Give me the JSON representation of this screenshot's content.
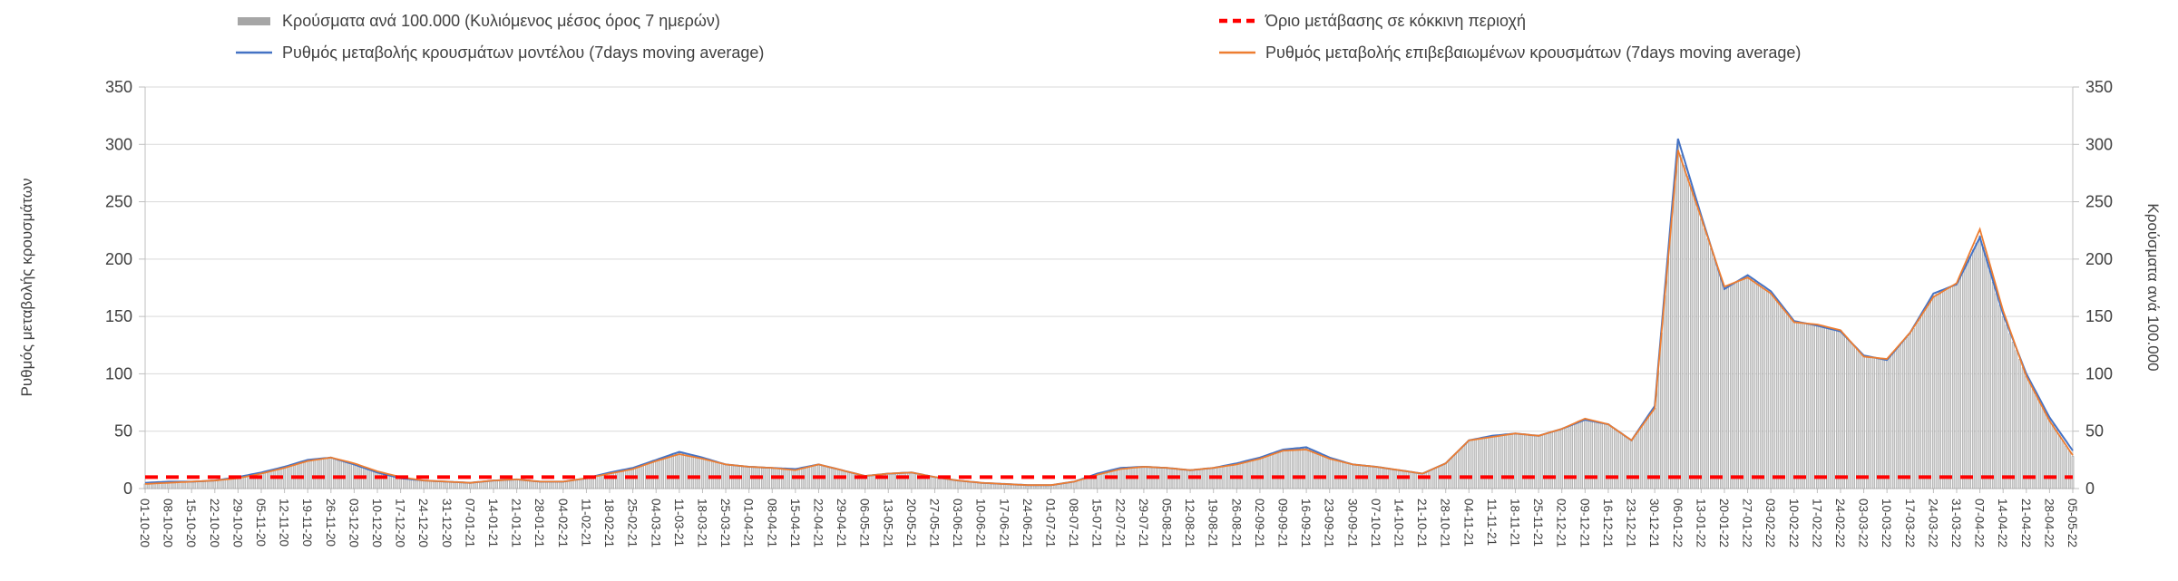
{
  "colors": {
    "bar_fill": "#dcdcdc",
    "bar_stroke": "#8f8f8f",
    "bar_legend": "#a6a6a6",
    "model_line": "#4472c4",
    "confirmed_line": "#ed7d31",
    "threshold_line": "#ff0000",
    "grid": "#d9d9d9",
    "axis": "#bfbfbf",
    "text": "#404040"
  },
  "legend": {
    "bars": "Κρούσματα ανά 100.000 (Κυλιόμενος μέσος όρος 7 ημερών)",
    "threshold": "Όριο μετάβασης σε κόκκινη περιοχή",
    "model": "Ρυθμός μεταβολής κρουσμάτων μοντέλου (7days moving average)",
    "confirmed": "Ρυθμός μεταβολής επιβεβαιωμένων κρουσμάτων (7days moving average)"
  },
  "axes": {
    "left_label": "Ρυθμός μεταβολής κρουσμάτων",
    "right_label": "Κρούσματα ανά 100.000"
  },
  "chart_data": {
    "type": "bar",
    "title": "",
    "xlabel": "",
    "ylabel_left": "Ρυθμός μεταβολής κρουσμάτων",
    "ylabel_right": "Κρούσματα ανά 100.000",
    "ylim": [
      0,
      350
    ],
    "y_ticks": [
      0,
      50,
      100,
      150,
      200,
      250,
      300,
      350
    ],
    "grid": "horizontal",
    "legend_position": "top",
    "categories": [
      "01-10-20",
      "08-10-20",
      "15-10-20",
      "22-10-20",
      "29-10-20",
      "05-11-20",
      "12-11-20",
      "19-11-20",
      "26-11-20",
      "03-12-20",
      "10-12-20",
      "17-12-20",
      "24-12-20",
      "31-12-20",
      "07-01-21",
      "14-01-21",
      "21-01-21",
      "28-01-21",
      "04-02-21",
      "11-02-21",
      "18-02-21",
      "25-02-21",
      "04-03-21",
      "11-03-21",
      "18-03-21",
      "25-03-21",
      "01-04-21",
      "08-04-21",
      "15-04-21",
      "22-04-21",
      "29-04-21",
      "06-05-21",
      "13-05-21",
      "20-05-21",
      "27-05-21",
      "03-06-21",
      "10-06-21",
      "17-06-21",
      "24-06-21",
      "01-07-21",
      "08-07-21",
      "15-07-21",
      "22-07-21",
      "29-07-21",
      "05-08-21",
      "12-08-21",
      "19-08-21",
      "26-08-21",
      "02-09-21",
      "09-09-21",
      "16-09-21",
      "23-09-21",
      "30-09-21",
      "07-10-21",
      "14-10-21",
      "21-10-21",
      "28-10-21",
      "04-11-21",
      "11-11-21",
      "18-11-21",
      "25-11-21",
      "02-12-21",
      "09-12-21",
      "16-12-21",
      "23-12-21",
      "30-12-21",
      "06-01-22",
      "13-01-22",
      "20-01-22",
      "27-01-22",
      "03-02-22",
      "10-02-22",
      "17-02-22",
      "24-02-22",
      "03-03-22",
      "10-03-22",
      "17-03-22",
      "24-03-22",
      "31-03-22",
      "07-04-22",
      "14-04-22",
      "21-04-22",
      "28-04-22",
      "05-05-22"
    ],
    "series": [
      {
        "name": "Κρούσματα ανά 100.000 (Κυλιόμενος μέσος όρος 7 ημερών)",
        "kind": "bar",
        "values": [
          4,
          5,
          6,
          7,
          9,
          13,
          18,
          24,
          27,
          22,
          15,
          10,
          7,
          6,
          5,
          7,
          8,
          6,
          6,
          9,
          13,
          17,
          24,
          31,
          26,
          21,
          19,
          18,
          16,
          21,
          16,
          11,
          13,
          14,
          10,
          7,
          5,
          4,
          3,
          3,
          6,
          12,
          17,
          19,
          18,
          16,
          18,
          21,
          26,
          34,
          35,
          26,
          21,
          19,
          16,
          13,
          22,
          42,
          45,
          48,
          46,
          52,
          60,
          56,
          42,
          70,
          300,
          235,
          175,
          185,
          170,
          145,
          142,
          138,
          115,
          112,
          135,
          168,
          178,
          220,
          150,
          98,
          60,
          28
        ]
      },
      {
        "name": "Ρυθμός μεταβολής κρουσμάτων μοντέλου (7days moving average)",
        "kind": "line",
        "values": [
          5,
          6,
          6,
          7,
          10,
          14,
          19,
          25,
          27,
          21,
          14,
          9,
          7,
          6,
          5,
          7,
          8,
          6,
          6,
          9,
          14,
          18,
          25,
          32,
          27,
          21,
          19,
          18,
          17,
          21,
          16,
          11,
          13,
          14,
          10,
          7,
          5,
          4,
          3,
          3,
          6,
          13,
          18,
          19,
          18,
          16,
          18,
          22,
          27,
          34,
          36,
          27,
          21,
          19,
          16,
          13,
          22,
          42,
          46,
          48,
          46,
          52,
          60,
          56,
          42,
          72,
          305,
          238,
          174,
          186,
          172,
          146,
          142,
          137,
          116,
          112,
          136,
          170,
          178,
          219,
          152,
          100,
          62,
          33
        ]
      },
      {
        "name": "Ρυθμός μεταβολής επιβεβαιωμένων κρουσμάτων (7days moving average)",
        "kind": "line",
        "values": [
          4,
          5,
          6,
          7,
          9,
          13,
          18,
          24,
          27,
          22,
          15,
          10,
          7,
          6,
          5,
          7,
          8,
          6,
          6,
          9,
          13,
          17,
          24,
          30,
          26,
          21,
          19,
          18,
          16,
          21,
          16,
          11,
          13,
          14,
          10,
          7,
          5,
          4,
          3,
          3,
          6,
          12,
          17,
          19,
          18,
          16,
          18,
          21,
          26,
          33,
          34,
          26,
          21,
          19,
          16,
          13,
          22,
          42,
          45,
          48,
          46,
          52,
          61,
          56,
          42,
          70,
          295,
          236,
          176,
          184,
          170,
          145,
          143,
          138,
          115,
          113,
          136,
          167,
          179,
          226,
          155,
          98,
          59,
          29
        ]
      },
      {
        "name": "Όριο μετάβασης σε κόκκινη περιοχή",
        "kind": "threshold",
        "value": 10
      }
    ]
  }
}
